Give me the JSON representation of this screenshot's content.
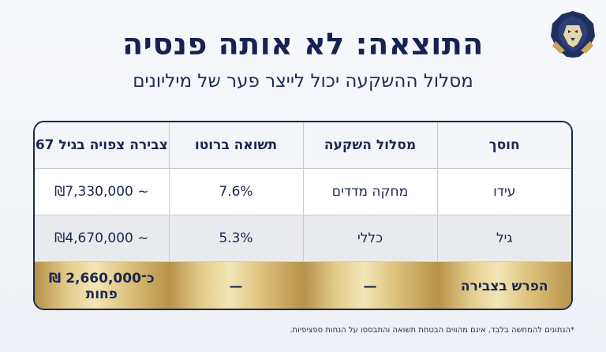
{
  "title": "התוצאה: לא אותה פנסיה",
  "subtitle": "מסלול ההשקעה יכול לייצר פער של מיליונים",
  "logo": {
    "icon": "lion-head-icon",
    "colors": [
      "#1f2f5e",
      "#c9a45a"
    ]
  },
  "table": {
    "headers": [
      "חוסך",
      "מסלול השקעה",
      "תשואה ברוטו",
      "צבירה צפויה בגיל 67"
    ],
    "rows": [
      [
        "עידו",
        "מחקה מדדים",
        "7.6%",
        "₪7,330,000 ~"
      ],
      [
        "גיל",
        "כללי",
        "5.3%",
        "₪4,670,000 ~"
      ]
    ],
    "total": [
      "הפרש בצבירה",
      "—",
      "—",
      "כ־2,660,000 ₪ פחות"
    ]
  },
  "footnote": "*הנתונים להמחשה בלבד, אינם מהווים הבטחת תשואה והתבססו על הנחות ספציפיות.",
  "colors": {
    "navy": "#17244a",
    "gold": "#d9bd78",
    "row_alt": "#e9eaee"
  }
}
